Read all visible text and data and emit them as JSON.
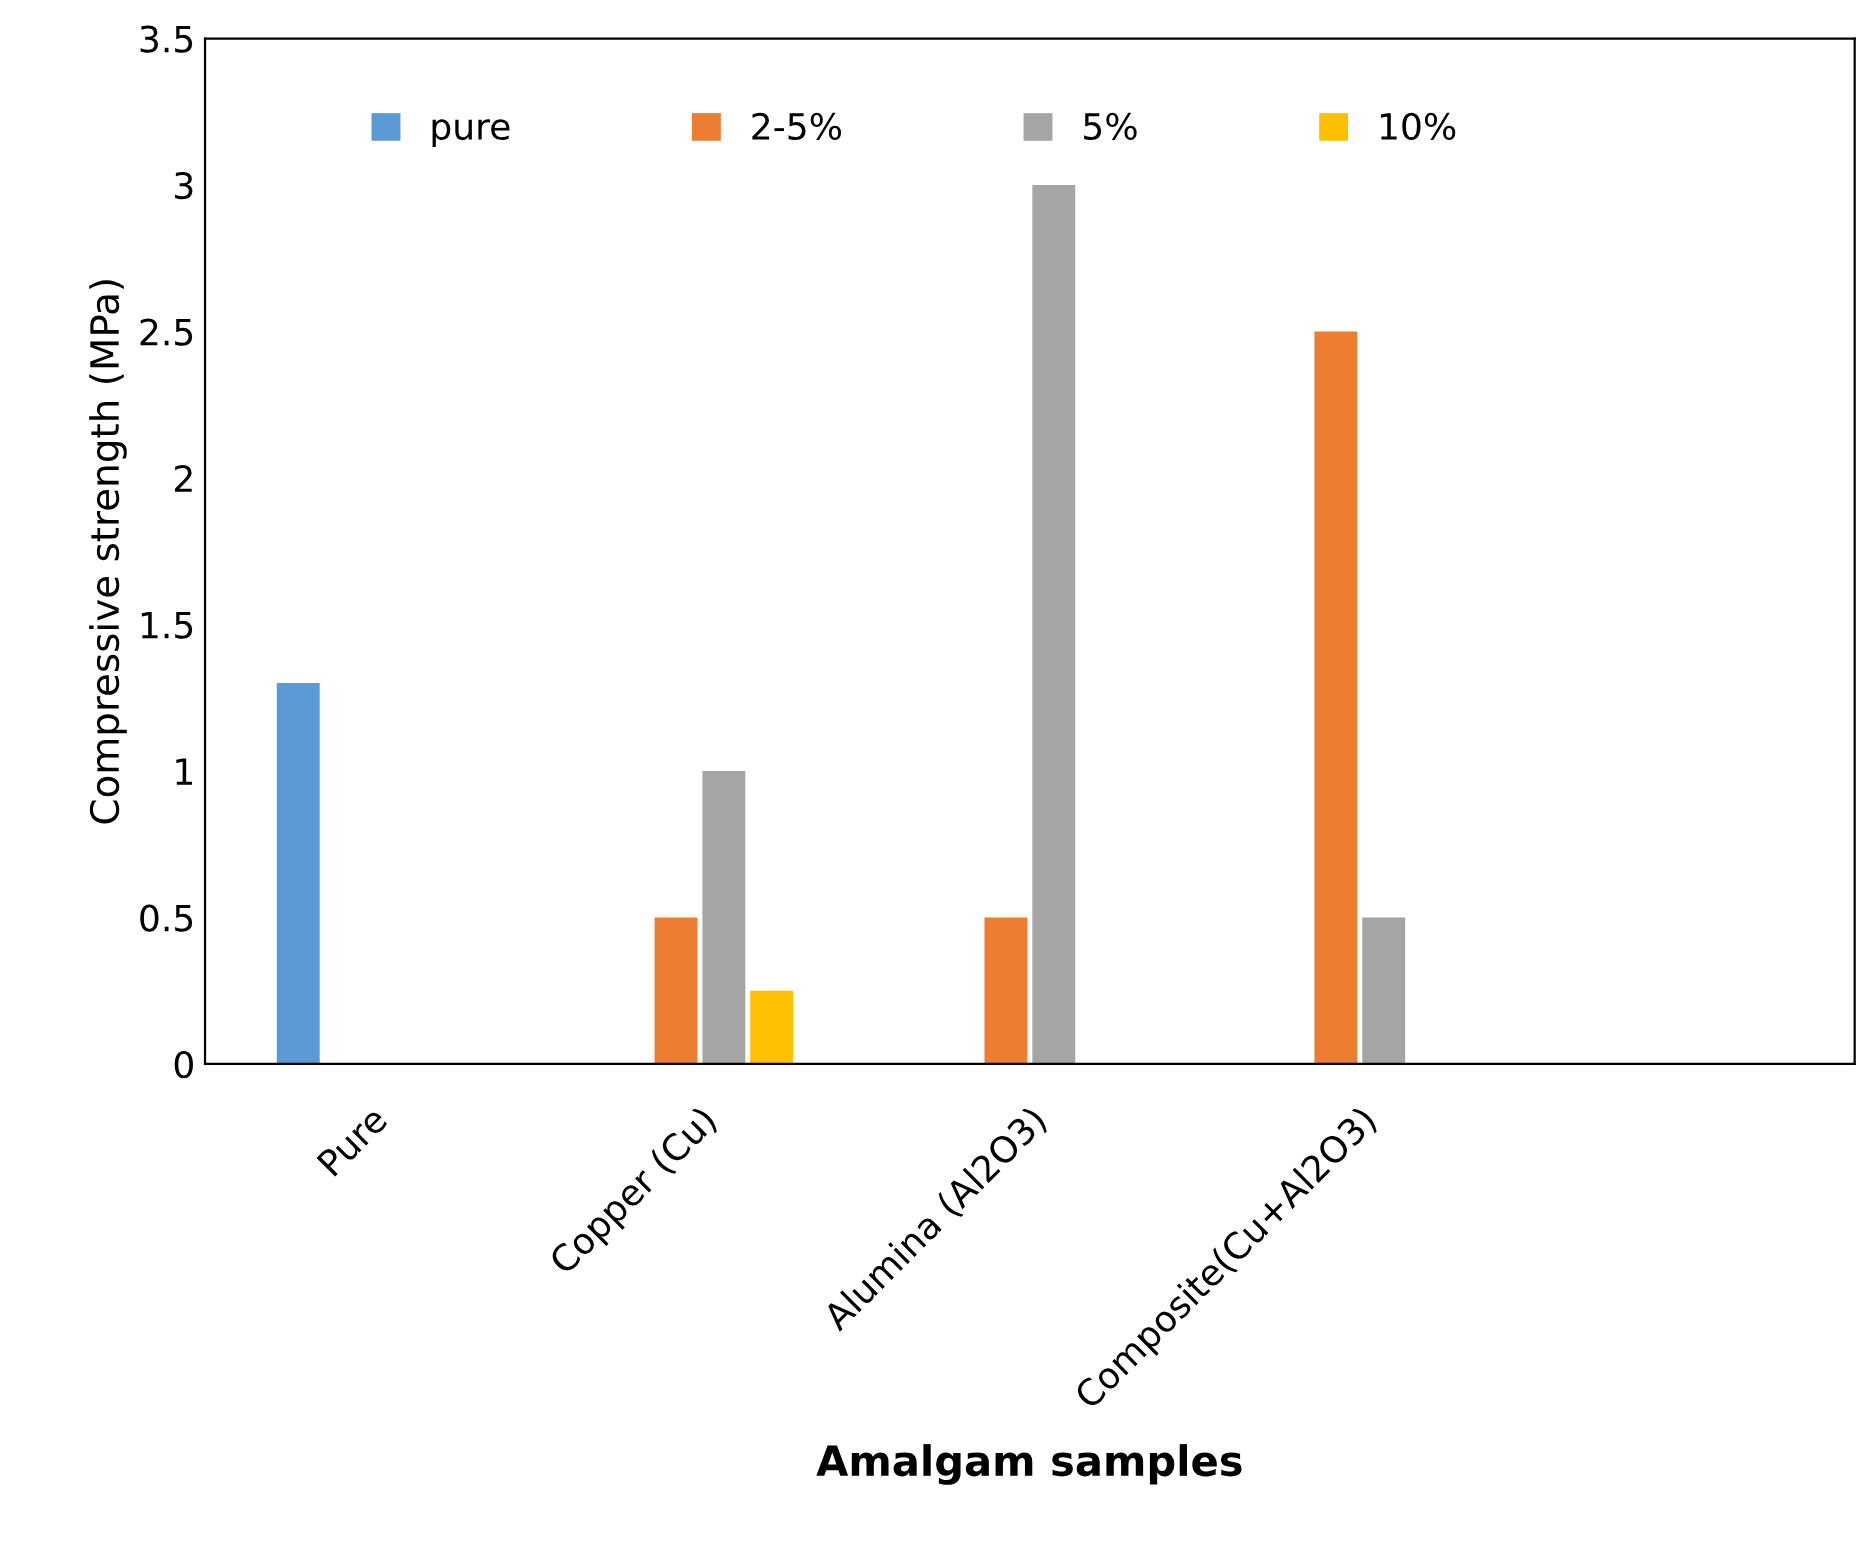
{
  "chart_data": {
    "type": "bar",
    "xlabel": "Amalgam samples",
    "ylabel": "Compressive strength (MPa)",
    "categories": [
      "Pure",
      "Copper (Cu)",
      "Alumina (Al2O3)",
      "Composite(Cu+Al2O3)",
      null
    ],
    "series": [
      {
        "name": "pure",
        "color": "#5b9bd5",
        "values": [
          1.3,
          null,
          null,
          null,
          null
        ]
      },
      {
        "name": "2-5%",
        "color": "#ed7d31",
        "values": [
          null,
          0.5,
          0.5,
          2.5,
          null
        ]
      },
      {
        "name": "5%",
        "color": "#a5a5a5",
        "values": [
          null,
          1.0,
          3.0,
          0.5,
          null
        ]
      },
      {
        "name": "10%",
        "color": "#ffc000",
        "values": [
          null,
          0.25,
          null,
          null,
          null
        ]
      }
    ],
    "ylim": [
      0,
      3.5
    ],
    "yticks": [
      0,
      0.5,
      1,
      1.5,
      2,
      2.5,
      3,
      3.5
    ],
    "grid": false,
    "legend": "top"
  }
}
